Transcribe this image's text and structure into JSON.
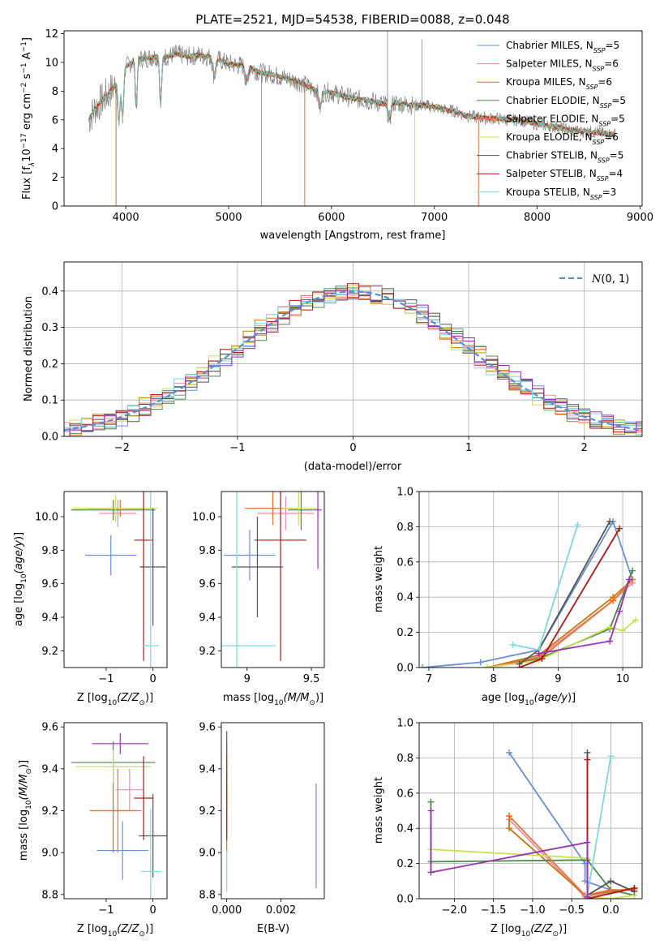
{
  "title": "PLATE=2521, MJD=54538, FIBERID=0088, z=0.048",
  "colors": {
    "Chabrier MILES": "#6a8fd8",
    "Salpeter MILES": "#e78fa6",
    "Kroupa MILES": "#c47a10",
    "Chabrier ELODIE": "#4a8a4a",
    "Salpeter ELODIE": "#e8743b",
    "Kroupa ELODIE": "#c8e05a",
    "Chabrier STELIB": "#555555",
    "Salpeter STELIB": "#b01818",
    "Kroupa STELIB": "#7fd8df",
    "extra": "#9b30b0",
    "data": "#808080"
  },
  "chart_data": [
    {
      "type": "line",
      "id": "spectrum",
      "title": "PLATE=2521, MJD=54538, FIBERID=0088, z=0.048",
      "xlabel": "wavelength [Angstrom, rest frame]",
      "ylabel_parts": [
        "Flux [f",
        "λ",
        "10",
        "−17",
        " erg cm",
        "−2",
        " s",
        "−1",
        " A",
        "−1",
        "]"
      ],
      "xlim": [
        3400,
        9020
      ],
      "ylim": [
        0,
        12.2
      ],
      "xticks": [
        4000,
        5000,
        6000,
        7000,
        8000,
        9000
      ],
      "yticks": [
        0,
        2,
        4,
        6,
        8,
        10,
        12
      ],
      "continuum": {
        "x": [
          3640,
          3700,
          3800,
          3900,
          4000,
          4100,
          4200,
          4300,
          4400,
          4500,
          4600,
          4700,
          4800,
          4900,
          5000,
          5100,
          5200,
          5300,
          5400,
          5500,
          5600,
          5700,
          5800,
          5900,
          6000,
          6100,
          6200,
          6300,
          6400,
          6500,
          6600,
          6700,
          6800,
          6900,
          7000,
          7100,
          7200,
          7300,
          7400,
          7500,
          7600,
          7700,
          7800,
          7900,
          8000,
          8100,
          8200,
          8300,
          8400,
          8500,
          8600,
          8700,
          8760
        ],
        "y": [
          6.0,
          6.8,
          7.6,
          8.4,
          9.7,
          10.2,
          10.3,
          10.4,
          10.4,
          10.6,
          10.4,
          10.5,
          10.4,
          10.2,
          9.9,
          9.8,
          9.7,
          9.3,
          9.2,
          9.0,
          8.8,
          8.6,
          8.2,
          8.0,
          7.9,
          7.7,
          7.5,
          7.4,
          7.3,
          7.1,
          7.2,
          7.1,
          7.0,
          7.0,
          6.9,
          6.7,
          6.6,
          6.3,
          6.2,
          6.1,
          6.1,
          6.0,
          6.0,
          5.9,
          5.7,
          5.6,
          5.5,
          5.3,
          5.2,
          5.2,
          5.1,
          5.0,
          5.0
        ]
      },
      "absorption_lines": [
        3934,
        3969,
        4102,
        4340,
        4861,
        5175,
        5890,
        6563
      ],
      "spikes_down": [
        {
          "x": 3905,
          "color": "Kroupa MILES"
        },
        {
          "x": 5740,
          "color": "Salpeter ELODIE"
        },
        {
          "x": 6810,
          "color": "Kroupa ELODIE"
        },
        {
          "x": 7430,
          "color": "Salpeter ELODIE"
        }
      ],
      "spikes_up": [
        {
          "x": 5320,
          "y": 0
        },
        {
          "x": 6545,
          "y": 12.2
        },
        {
          "x": 6880,
          "y": 11.6
        }
      ],
      "legend": [
        {
          "label": "Chabrier MILES, N",
          "n": "5",
          "color": "Chabrier MILES"
        },
        {
          "label": "Salpeter MILES, N",
          "n": "6",
          "color": "Salpeter MILES"
        },
        {
          "label": "Kroupa MILES, N",
          "n": "6",
          "color": "Kroupa MILES"
        },
        {
          "label": "Chabrier ELODIE, N",
          "n": "5",
          "color": "Chabrier ELODIE"
        },
        {
          "label": "Salpeter ELODIE, N",
          "n": "5",
          "color": "Salpeter ELODIE"
        },
        {
          "label": "Kroupa ELODIE, N",
          "n": "6",
          "color": "Kroupa ELODIE"
        },
        {
          "label": "Chabrier STELIB, N",
          "n": "5",
          "color": "Chabrier STELIB"
        },
        {
          "label": "Salpeter STELIB, N",
          "n": "4",
          "color": "Salpeter STELIB"
        },
        {
          "label": "Kroupa STELIB, N",
          "n": "3",
          "color": "Kroupa STELIB"
        }
      ],
      "legend_sub": "SSP",
      "grid": false,
      "legend_position": "upper right"
    },
    {
      "type": "histogram",
      "id": "residuals",
      "xlabel": "(data-model)/error",
      "ylabel": "Normed distribution",
      "xlim": [
        -2.5,
        2.5
      ],
      "ylim": [
        0,
        0.48
      ],
      "xticks": [
        -2,
        -1,
        0,
        1,
        2
      ],
      "yticks": [
        0.0,
        0.1,
        0.2,
        0.3,
        0.4
      ],
      "bin_width": 0.1,
      "legend": [
        {
          "label": "N(0,1)",
          "color": "#5b8dd6",
          "style": "dashed"
        }
      ],
      "grid": true,
      "legend_position": "upper right"
    },
    {
      "type": "scatter",
      "id": "z-age",
      "xlabel": "Z [log10(Z/Z⊙)]",
      "ylabel": "age  [log10(age/yr)]",
      "xlim": [
        -1.9,
        0.3
      ],
      "ylim": [
        9.1,
        10.15
      ],
      "xticks": [
        -1,
        0
      ],
      "yticks": [
        9.2,
        9.4,
        9.6,
        9.8,
        10.0
      ],
      "points": [
        {
          "x": -0.9,
          "xe": 0.55,
          "y": 9.77,
          "ye": 0.12,
          "c": "Chabrier MILES"
        },
        {
          "x": -0.75,
          "xe": 0.4,
          "y": 10.02,
          "ye": 0.08,
          "c": "Salpeter MILES"
        },
        {
          "x": -0.8,
          "xe": 0.6,
          "y": 10.05,
          "ye": 0.05,
          "c": "Kroupa MILES"
        },
        {
          "x": -0.85,
          "xe": 0.9,
          "y": 10.04,
          "ye": 0.06,
          "c": "Chabrier ELODIE"
        },
        {
          "x": -0.7,
          "xe": 0.7,
          "y": 10.05,
          "ye": 0.05,
          "c": "Salpeter ELODIE"
        },
        {
          "x": -0.8,
          "xe": 0.9,
          "y": 10.05,
          "ye": 0.08,
          "c": "Kroupa ELODIE"
        },
        {
          "x": 0.0,
          "xe": 0.28,
          "y": 9.7,
          "ye": 0.35,
          "c": "Chabrier STELIB"
        },
        {
          "x": -0.2,
          "xe": 0.2,
          "y": 9.86,
          "ye": 0.72,
          "c": "Salpeter STELIB"
        },
        {
          "x": -0.05,
          "xe": 0.18,
          "y": 9.23,
          "ye": 0.95,
          "c": "Kroupa STELIB"
        }
      ]
    },
    {
      "type": "scatter",
      "id": "mass-age",
      "xlabel": "mass [log10(M/M⊙)]",
      "ylabel": "",
      "xlim": [
        8.8,
        9.6
      ],
      "ylim": [
        9.1,
        10.15
      ],
      "xticks": [
        9.0,
        9.5
      ],
      "yticks": [
        9.2,
        9.4,
        9.6,
        9.8,
        10.0
      ],
      "points": [
        {
          "x": 9.02,
          "xe": 0.2,
          "y": 9.77,
          "ye": 0.15,
          "c": "Chabrier MILES"
        },
        {
          "x": 9.3,
          "xe": 0.22,
          "y": 10.02,
          "ye": 0.1,
          "c": "Salpeter MILES"
        },
        {
          "x": 9.2,
          "xe": 0.2,
          "y": 10.05,
          "ye": 0.05,
          "c": "Kroupa MILES"
        },
        {
          "x": 9.42,
          "xe": 0.1,
          "y": 10.04,
          "ye": 0.12,
          "c": "Chabrier ELODIE"
        },
        {
          "x": 9.2,
          "xe": 0.22,
          "y": 10.05,
          "ye": 0.1,
          "c": "Salpeter ELODIE"
        },
        {
          "x": 9.4,
          "xe": 0.15,
          "y": 10.05,
          "ye": 0.1,
          "c": "Kroupa ELODIE"
        },
        {
          "x": 9.08,
          "xe": 0.2,
          "y": 9.7,
          "ye": 0.3,
          "c": "Chabrier STELIB"
        },
        {
          "x": 9.26,
          "xe": 0.2,
          "y": 9.86,
          "ye": 0.72,
          "c": "Salpeter STELIB"
        },
        {
          "x": 8.92,
          "xe": 0.3,
          "y": 9.23,
          "ye": 0.95,
          "c": "Kroupa STELIB"
        },
        {
          "x": 9.55,
          "xe": 0.03,
          "y": 10.04,
          "ye": 0.35,
          "c": "extra"
        }
      ]
    },
    {
      "type": "line",
      "id": "age-weight",
      "xlabel": "age  [log10(age/yr)]",
      "ylabel": "mass weight",
      "xlim": [
        6.85,
        10.3
      ],
      "ylim": [
        0,
        1.0
      ],
      "xticks": [
        7,
        8,
        9,
        10
      ],
      "yticks": [
        0.0,
        0.2,
        0.4,
        0.6,
        0.8,
        1.0
      ],
      "series": [
        {
          "c": "Chabrier MILES",
          "x": [
            6.9,
            7.8,
            8.7,
            9.85,
            10.15
          ],
          "y": [
            0.0,
            0.03,
            0.1,
            0.83,
            0.5
          ]
        },
        {
          "c": "Salpeter MILES",
          "x": [
            7.9,
            8.7,
            9.85,
            10.15
          ],
          "y": [
            0.0,
            0.06,
            0.38,
            0.48
          ]
        },
        {
          "c": "Kroupa MILES",
          "x": [
            7.9,
            8.7,
            9.85,
            10.15
          ],
          "y": [
            0.0,
            0.07,
            0.4,
            0.5
          ]
        },
        {
          "c": "Chabrier ELODIE",
          "x": [
            7.9,
            8.7,
            9.8,
            10.15
          ],
          "y": [
            0.0,
            0.05,
            0.22,
            0.55
          ]
        },
        {
          "c": "Salpeter ELODIE",
          "x": [
            7.9,
            8.75,
            9.85,
            10.15
          ],
          "y": [
            0.0,
            0.06,
            0.38,
            0.5
          ]
        },
        {
          "c": "Kroupa ELODIE",
          "x": [
            7.9,
            8.7,
            9.8,
            10.0,
            10.2
          ],
          "y": [
            0.0,
            0.04,
            0.23,
            0.21,
            0.27
          ]
        },
        {
          "c": "Chabrier STELIB",
          "x": [
            8.4,
            8.7,
            9.8
          ],
          "y": [
            0.02,
            0.1,
            0.83
          ]
        },
        {
          "c": "Salpeter STELIB",
          "x": [
            8.4,
            8.75,
            9.95
          ],
          "y": [
            0.0,
            0.05,
            0.79
          ]
        },
        {
          "c": "Kroupa STELIB",
          "x": [
            8.3,
            8.7,
            9.3
          ],
          "y": [
            0.13,
            0.1,
            0.81
          ]
        },
        {
          "c": "extra",
          "x": [
            8.7,
            9.8,
            9.95,
            10.1
          ],
          "y": [
            0.08,
            0.15,
            0.32,
            0.5
          ]
        }
      ]
    },
    {
      "type": "scatter",
      "id": "z-mass",
      "xlabel": "Z [log10(Z/Z⊙)]",
      "ylabel": "mass [log10(M/M⊙)]",
      "xlim": [
        -1.9,
        0.3
      ],
      "ylim": [
        8.78,
        9.62
      ],
      "xticks": [
        -1,
        0
      ],
      "yticks": [
        8.8,
        9.0,
        9.2,
        9.4,
        9.6
      ],
      "points": [
        {
          "x": -0.65,
          "xe": 0.55,
          "y": 9.01,
          "ye": 0.14,
          "c": "Chabrier MILES"
        },
        {
          "x": -0.5,
          "xe": 0.3,
          "y": 9.3,
          "ye": 0.1,
          "c": "Salpeter MILES"
        },
        {
          "x": -0.85,
          "xe": 0.5,
          "y": 9.2,
          "ye": 0.2,
          "c": "Kroupa MILES"
        },
        {
          "x": -0.85,
          "xe": 0.9,
          "y": 9.43,
          "ye": 0.1,
          "c": "Chabrier ELODIE"
        },
        {
          "x": -0.75,
          "xe": 0.5,
          "y": 9.2,
          "ye": 0.2,
          "c": "Salpeter ELODIE"
        },
        {
          "x": -0.85,
          "xe": 0.8,
          "y": 9.41,
          "ye": 0.08,
          "c": "Kroupa ELODIE"
        },
        {
          "x": 0.0,
          "xe": 0.3,
          "y": 9.08,
          "ye": 0.2,
          "c": "Chabrier STELIB"
        },
        {
          "x": -0.2,
          "xe": 0.2,
          "y": 9.26,
          "ye": 0.2,
          "c": "Salpeter STELIB"
        },
        {
          "x": -0.05,
          "xe": 0.2,
          "y": 8.91,
          "ye": 0.3,
          "c": "Kroupa STELIB"
        },
        {
          "x": -0.7,
          "xe": 0.6,
          "y": 9.52,
          "ye": 0.05,
          "c": "extra"
        }
      ]
    },
    {
      "type": "scatter",
      "id": "ebv-mass",
      "xlabel": "E(B-V)",
      "ylabel": "",
      "xlim": [
        -0.0002,
        0.0036
      ],
      "ylim": [
        8.78,
        9.62
      ],
      "xticks": [
        0.0,
        0.002
      ],
      "xticklabels": [
        "0.000",
        "0.002"
      ],
      "yticks": [
        8.8,
        9.0,
        9.2,
        9.4,
        9.6
      ],
      "points": [
        {
          "x": 0.0033,
          "xe": 0,
          "y": 9.08,
          "ye": 0.25,
          "c": "Chabrier MILES"
        },
        {
          "x": 0.0,
          "xe": 0,
          "y": 9.3,
          "ye": 0.1,
          "c": "Salpeter MILES"
        },
        {
          "x": 0.0,
          "xe": 0,
          "y": 9.2,
          "ye": 0.2,
          "c": "Kroupa MILES"
        },
        {
          "x": 0.0,
          "xe": 0,
          "y": 9.43,
          "ye": 0.1,
          "c": "Chabrier ELODIE"
        },
        {
          "x": 0.0,
          "xe": 0,
          "y": 9.41,
          "ye": 0.08,
          "c": "Kroupa ELODIE"
        },
        {
          "x": 0.0,
          "xe": 0,
          "y": 9.26,
          "ye": 0.2,
          "c": "Salpeter STELIB"
        },
        {
          "x": 0.0,
          "xe": 0,
          "y": 8.91,
          "ye": 0.1,
          "c": "Kroupa STELIB"
        },
        {
          "x": 0.0,
          "xe": 0,
          "y": 9.52,
          "ye": 0.06,
          "c": "extra"
        }
      ]
    },
    {
      "type": "line",
      "id": "z-weight",
      "xlabel": "Z [log10(Z/Z⊙)]",
      "ylabel": "mass weight",
      "xlim": [
        -2.45,
        0.4
      ],
      "ylim": [
        0,
        1.0
      ],
      "xticks": [
        -2.0,
        -1.5,
        -1.0,
        -0.5,
        0.0
      ],
      "xticklabels": [
        "−2.0",
        "−1.5",
        "−1.0",
        "−0.5",
        "0.0"
      ],
      "yticks": [
        0.0,
        0.2,
        0.4,
        0.6,
        0.8,
        1.0
      ],
      "series": [
        {
          "c": "Chabrier MILES",
          "x": [
            -1.3,
            -0.33,
            -0.33,
            0.0
          ],
          "y": [
            0.83,
            0.2,
            0.1,
            0.05
          ]
        },
        {
          "c": "Salpeter MILES",
          "x": [
            -1.3,
            -0.33,
            0.3
          ],
          "y": [
            0.45,
            0.01,
            0.06
          ]
        },
        {
          "c": "Kroupa MILES",
          "x": [
            -1.3,
            -1.3,
            -0.33,
            0.3
          ],
          "y": [
            0.47,
            0.4,
            0.02,
            0.06
          ]
        },
        {
          "c": "Chabrier ELODIE",
          "x": [
            -2.3,
            -2.3,
            -0.3,
            0.0,
            0.3
          ],
          "y": [
            0.55,
            0.21,
            0.22,
            0.05,
            0.02
          ]
        },
        {
          "c": "Salpeter ELODIE",
          "x": [
            -1.3,
            -0.33,
            0.0,
            0.3
          ],
          "y": [
            0.47,
            0.02,
            0.05,
            0.05
          ]
        },
        {
          "c": "Kroupa ELODIE",
          "x": [
            -2.3,
            -0.3,
            -0.3,
            0.0,
            0.3
          ],
          "y": [
            0.28,
            0.23,
            0.01,
            0.0,
            0.02
          ]
        },
        {
          "c": "Chabrier STELIB",
          "x": [
            -0.3,
            -0.3,
            0.0,
            0.3
          ],
          "y": [
            0.83,
            0.02,
            0.1,
            0.04
          ]
        },
        {
          "c": "Salpeter STELIB",
          "x": [
            -0.3,
            -0.3,
            0.3
          ],
          "y": [
            0.79,
            0.0,
            0.06
          ]
        },
        {
          "c": "Kroupa STELIB",
          "x": [
            -0.3,
            -0.3,
            0.0
          ],
          "y": [
            0.12,
            0.02,
            0.81
          ]
        },
        {
          "c": "extra",
          "x": [
            -2.3,
            -2.3,
            -0.3,
            -0.3
          ],
          "y": [
            0.5,
            0.15,
            0.32,
            0.01
          ]
        }
      ]
    }
  ]
}
